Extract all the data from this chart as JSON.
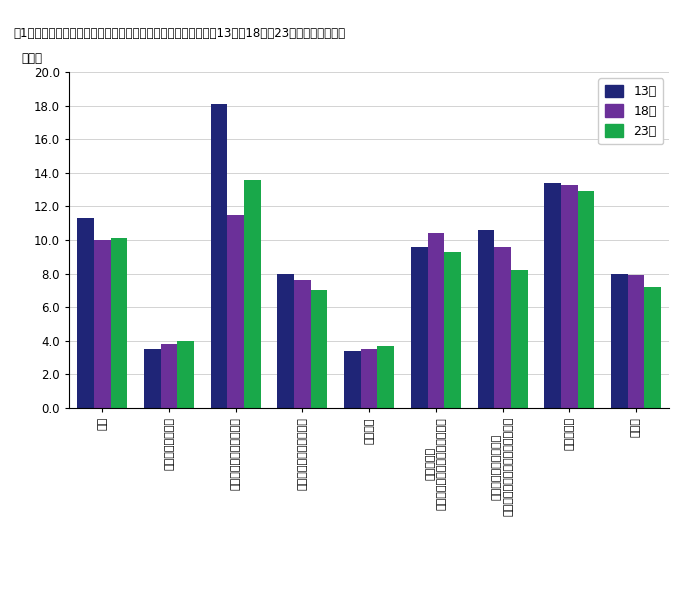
{
  "title": "図1　「学習・自己啓発・訓練」の種類別行動者率の推移（平成13年、18年、23年）　－京都府－",
  "pct_label": "（％）",
  "categories": [
    "英語",
    "英語以外の外国語",
    "パソコンなどの情報処理",
    "商務実務・ビジネス関係",
    "介護関係",
    "家政・家事\n（料理・裁縫・家庭経営など）",
    "人文・社会・自然科学\n（歴史・経済・数学・生物など）",
    "芸術・文化",
    "その他"
  ],
  "series": {
    "13年": [
      11.3,
      3.5,
      18.1,
      8.0,
      3.4,
      9.6,
      10.6,
      13.4,
      8.0
    ],
    "18年": [
      10.0,
      3.8,
      11.5,
      7.6,
      3.5,
      10.4,
      9.6,
      13.3,
      7.9
    ],
    "23年": [
      10.1,
      4.0,
      13.6,
      7.0,
      3.7,
      9.3,
      8.2,
      12.9,
      7.2
    ]
  },
  "colors": {
    "13年": "#1f2577",
    "18年": "#6b3099",
    "23年": "#19a84a"
  },
  "ylim": [
    0,
    20.0
  ],
  "yticks": [
    0.0,
    2.0,
    4.0,
    6.0,
    8.0,
    10.0,
    12.0,
    14.0,
    16.0,
    18.0,
    20.0
  ],
  "legend_order": [
    "13年",
    "18年",
    "23年"
  ],
  "figsize": [
    6.9,
    6.0
  ],
  "dpi": 100
}
